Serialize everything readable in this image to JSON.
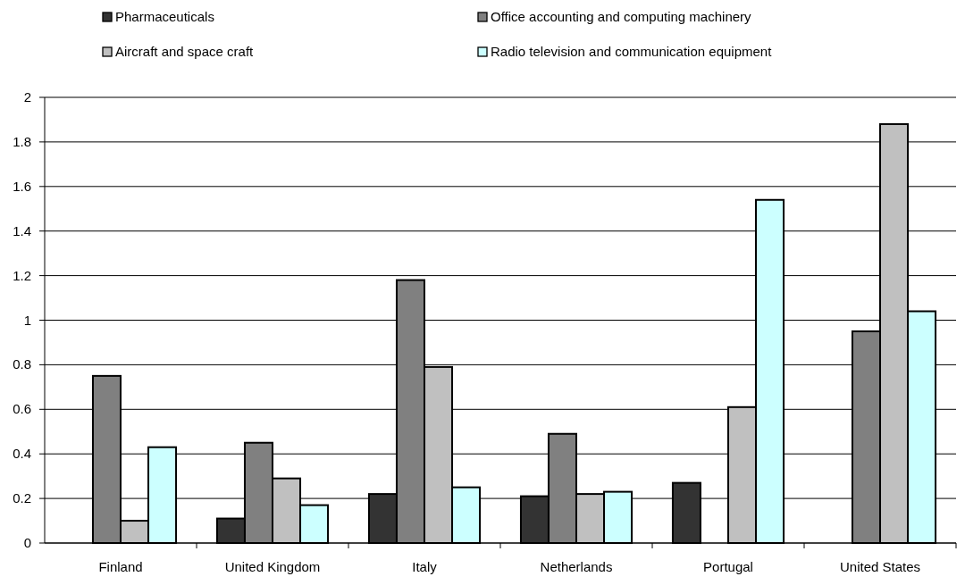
{
  "chart_data": {
    "type": "bar",
    "categories": [
      "Finland",
      "United Kingdom",
      "Italy",
      "Netherlands",
      "Portugal",
      "United States"
    ],
    "series": [
      {
        "name": "Pharmaceuticals",
        "color": "#333333",
        "values": [
          null,
          0.11,
          0.22,
          0.21,
          0.27,
          null
        ]
      },
      {
        "name": "Office accounting and computing machinery",
        "color": "#808080",
        "values": [
          0.75,
          0.45,
          1.18,
          0.49,
          null,
          0.95
        ]
      },
      {
        "name": "Aircraft and space craft",
        "color": "#c0c0c0",
        "values": [
          0.1,
          0.29,
          0.79,
          0.22,
          0.61,
          1.88
        ]
      },
      {
        "name": "Radio television and communication equipment",
        "color": "#ccffff",
        "values": [
          0.43,
          0.17,
          0.25,
          0.23,
          1.54,
          1.04
        ]
      }
    ],
    "ylim": [
      0,
      2
    ],
    "yticks": [
      0,
      {
        "value": 0.2,
        "label": "0.2"
      },
      {
        "value": 0.4,
        "label": "0.4"
      },
      {
        "value": 0.6,
        "label": "0.6"
      },
      {
        "value": 0.8,
        "label": "0.8"
      },
      1,
      {
        "value": 1.2,
        "label": "1.2"
      },
      {
        "value": 1.4,
        "label": "1.4"
      },
      {
        "value": 1.6,
        "label": "1.6"
      },
      {
        "value": 1.8,
        "label": "1.8"
      },
      2
    ],
    "grid": "y",
    "legend": "top"
  }
}
